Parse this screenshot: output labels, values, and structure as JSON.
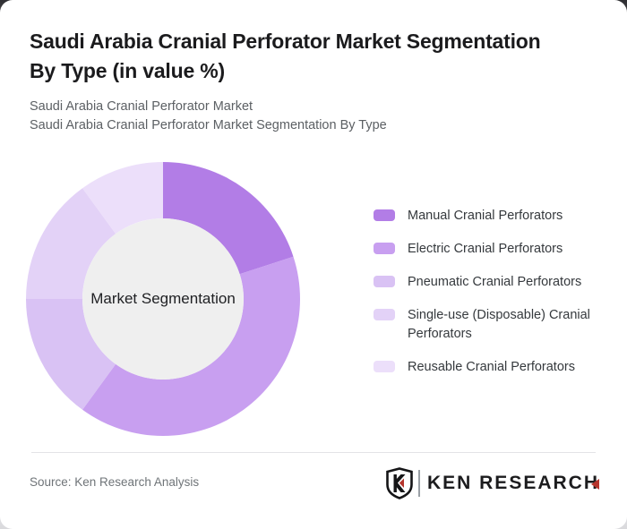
{
  "page": {
    "title_line1": "Saudi Arabia Cranial Perforator Market Segmentation",
    "title_line2": "By Type (in value %)",
    "subtitle_line1": "Saudi Arabia Cranial Perforator Market",
    "subtitle_line2": "Saudi Arabia Cranial Perforator Market Segmentation By Type"
  },
  "chart_data": {
    "type": "pie",
    "variant": "donut",
    "title": "Saudi Arabia Cranial Perforator Market Segmentation By Type (in value %)",
    "center_label": "Market Segmentation",
    "unit": "value %",
    "categories": [
      "Manual Cranial Perforators",
      "Electric Cranial Perforators",
      "Pneumatic Cranial Perforators",
      "Single-use (Disposable) Cranial Perforators",
      "Reusable Cranial Perforators"
    ],
    "values": [
      20,
      40,
      15,
      15,
      10
    ],
    "colors": [
      "#b27de6",
      "#c89ff0",
      "#d9c2f4",
      "#e3d2f7",
      "#ecdffa"
    ],
    "start_angle_deg": 0,
    "direction": "clockwise",
    "inner_hole_color": "#efefef",
    "legend_position": "right",
    "data_labels_shown": false
  },
  "footer": {
    "source": "Source: Ken Research Analysis",
    "brand": {
      "logo_mark_letter": "K",
      "wordmark": "KEN RESEARCH",
      "accent_color": "#b5342c",
      "text_color": "#1c1c1e"
    }
  }
}
